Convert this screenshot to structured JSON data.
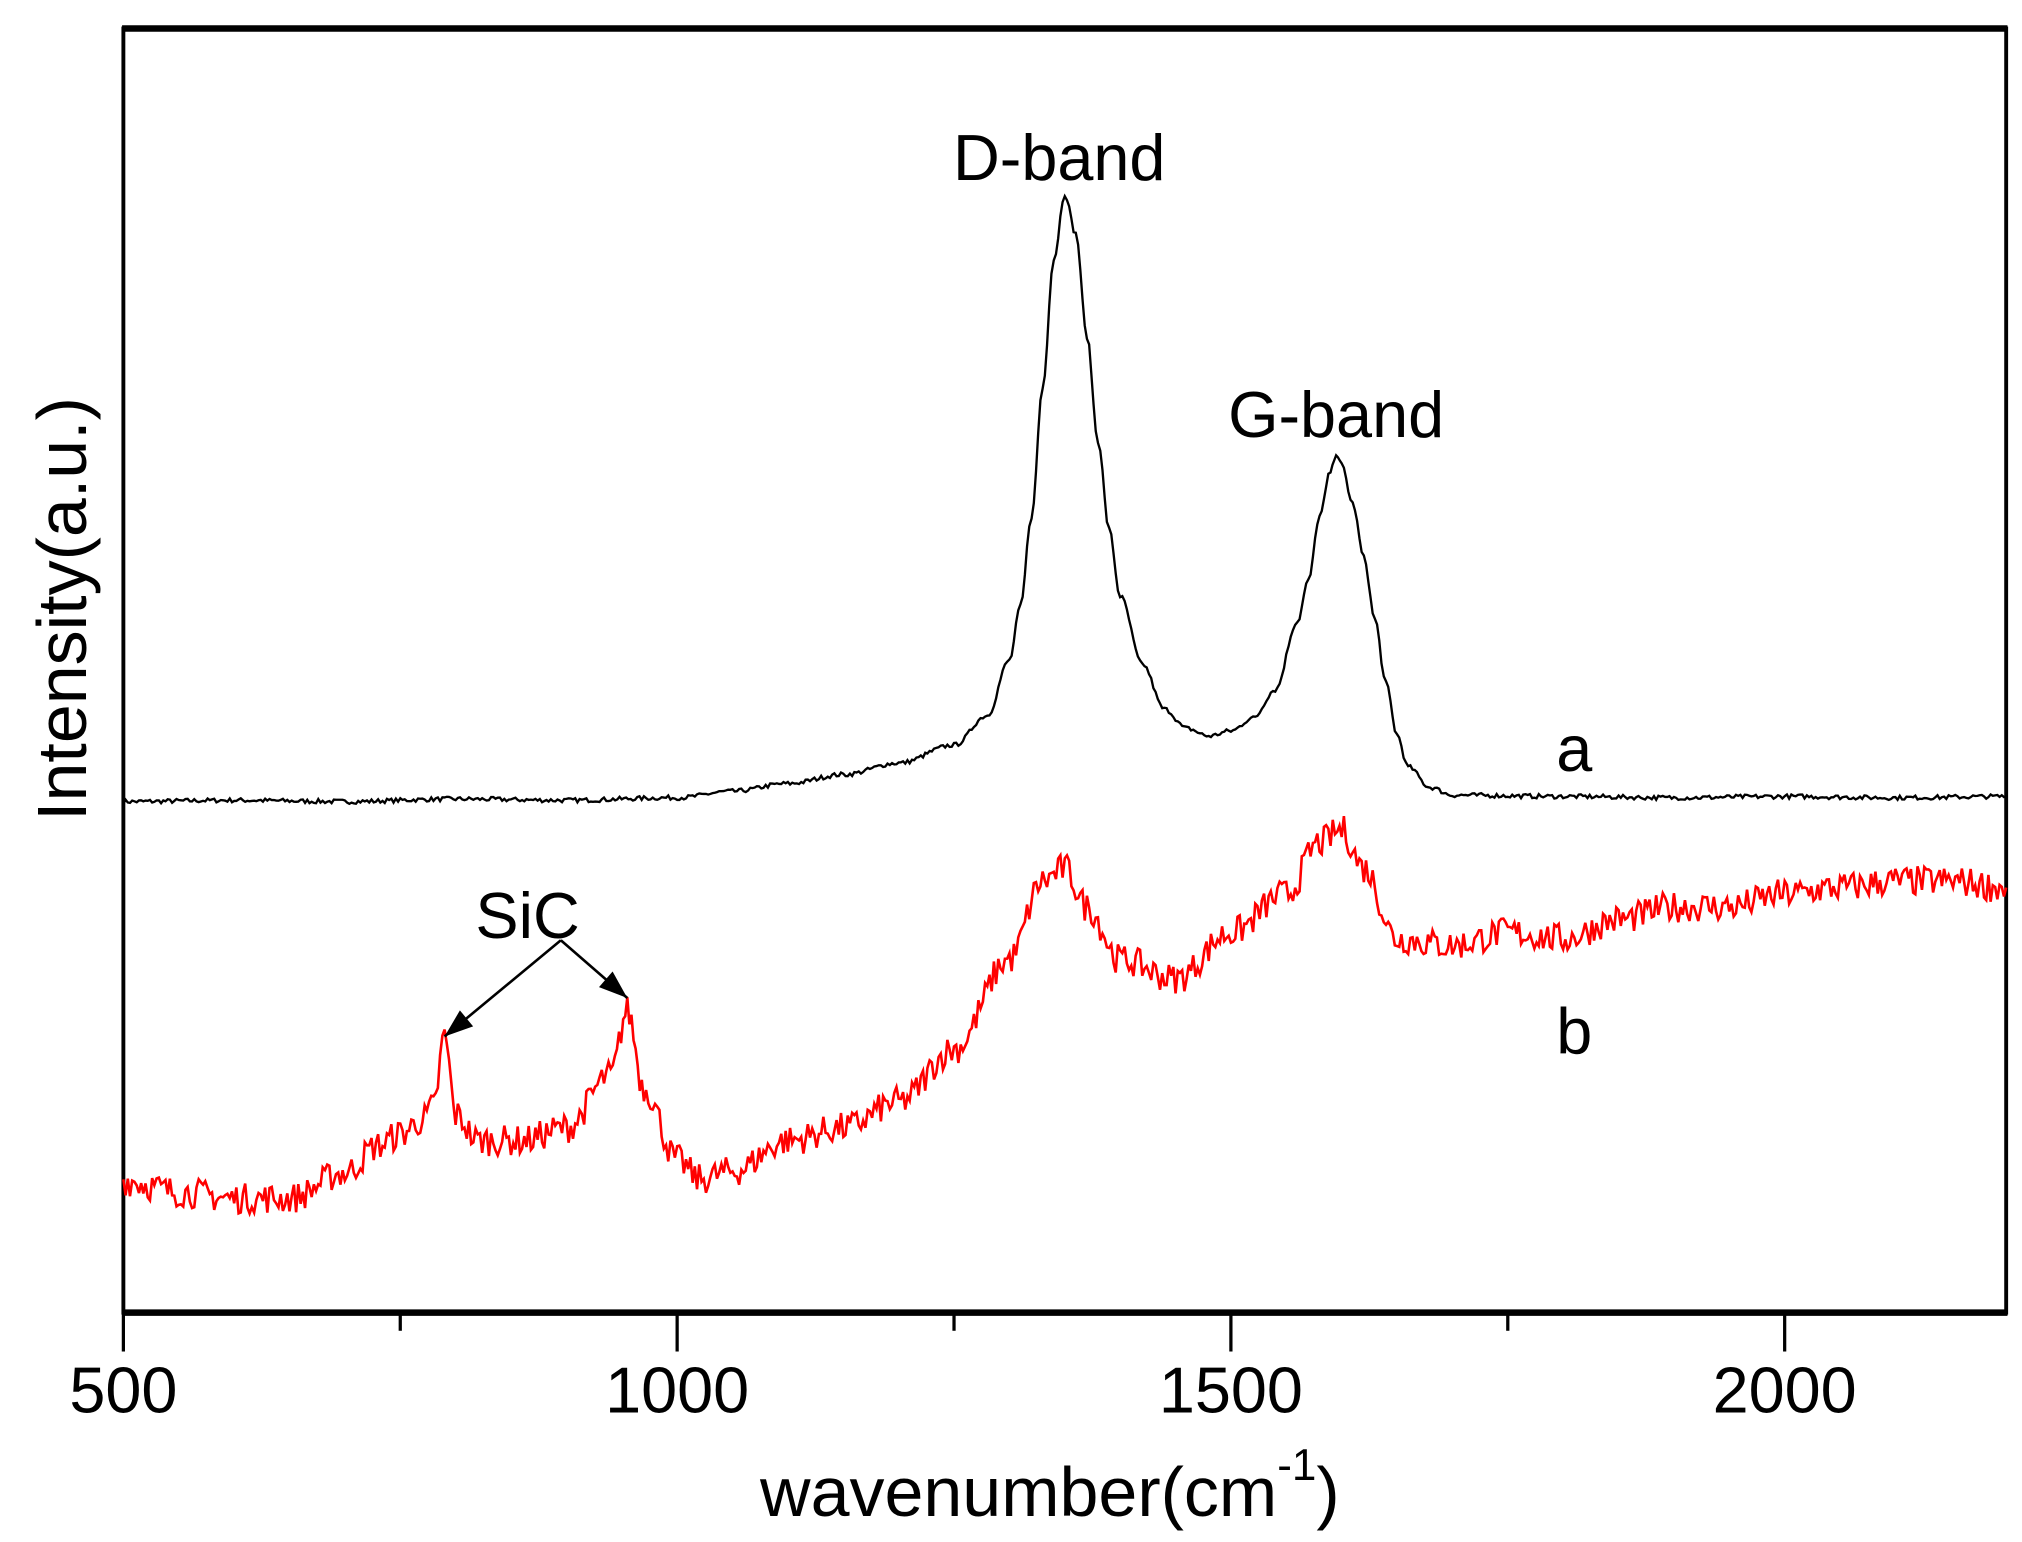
{
  "chart_data": {
    "type": "line",
    "title": "",
    "xlabel": "wavenumber(cm",
    "xlabel_superscript": "-1",
    "xlabel_close": ")",
    "ylabel": "Intensity(a.u.)",
    "xlim": [
      500,
      2200
    ],
    "ylim": [
      0,
      100
    ],
    "xticks": [
      500,
      1000,
      1500,
      2000
    ],
    "xtick_labels": [
      "500",
      "1000",
      "1500",
      "2000"
    ],
    "minor_xticks": [
      750,
      1250,
      1750
    ],
    "grid": false,
    "series": [
      {
        "name": "a",
        "color": "#000000",
        "x": [
          500,
          600,
          700,
          800,
          900,
          1000,
          1050,
          1100,
          1150,
          1200,
          1250,
          1280,
          1300,
          1310,
          1320,
          1330,
          1340,
          1350,
          1360,
          1370,
          1380,
          1390,
          1400,
          1420,
          1440,
          1460,
          1480,
          1500,
          1520,
          1540,
          1560,
          1570,
          1580,
          1590,
          1595,
          1600,
          1610,
          1620,
          1630,
          1640,
          1650,
          1660,
          1680,
          1700,
          1800,
          1900,
          2000,
          2100,
          2200
        ],
        "y": [
          39.8,
          39.9,
          39.8,
          40.0,
          39.9,
          40.1,
          40.6,
          41.2,
          41.9,
          42.8,
          44.2,
          46.5,
          50.8,
          55,
          62,
          72,
          82,
          87.1,
          84,
          76,
          67.9,
          61,
          55.8,
          50.5,
          47,
          45.5,
          44.9,
          45.3,
          46.3,
          48.5,
          53.8,
          57,
          62,
          65.5,
          66.9,
          66,
          63,
          58.8,
          54,
          49,
          45,
          42.5,
          40.9,
          40.3,
          40.2,
          40.1,
          40.2,
          40.1,
          40.2
        ]
      },
      {
        "name": "b",
        "color": "#ff0000",
        "x": [
          500,
          550,
          600,
          650,
          700,
          730,
          750,
          770,
          780,
          790,
          800,
          820,
          860,
          900,
          940,
          955,
          970,
          1000,
          1020,
          1050,
          1100,
          1150,
          1200,
          1250,
          1300,
          1330,
          1350,
          1370,
          1400,
          1450,
          1500,
          1550,
          1580,
          1600,
          1620,
          1650,
          1700,
          1750,
          1800,
          1850,
          1900,
          1950,
          2000,
          2050,
          2100,
          2150,
          2200
        ],
        "y": [
          10.3,
          9.4,
          8.9,
          8.9,
          10.9,
          13,
          13.9,
          15,
          16,
          21.5,
          15.4,
          13.4,
          13.4,
          14.4,
          18.5,
          23.5,
          17.5,
          11.9,
          10.4,
          11,
          13.4,
          14.4,
          16.4,
          20.5,
          27.5,
          33.6,
          34.6,
          31.6,
          27.5,
          26.0,
          29.6,
          32.6,
          36.6,
          37.6,
          34.6,
          29.1,
          28.6,
          29.6,
          29.1,
          30.6,
          31.6,
          31.6,
          32.6,
          33.1,
          33.6,
          33.6,
          33.1
        ]
      }
    ],
    "annotations": [
      {
        "text": "D-band",
        "x": 1345,
        "y": 90
      },
      {
        "text": "G-band",
        "x": 1595,
        "y": 70
      },
      {
        "text": "a",
        "x": 1810,
        "y": 44
      },
      {
        "text": "b",
        "x": 1810,
        "y": 22
      },
      {
        "text": "SiC",
        "x": 865,
        "y": 31
      }
    ],
    "arrows": [
      {
        "from": [
          895,
          29
        ],
        "to": [
          790,
          21.5
        ]
      },
      {
        "from": [
          895,
          29
        ],
        "to": [
          955,
          24.5
        ]
      }
    ]
  }
}
